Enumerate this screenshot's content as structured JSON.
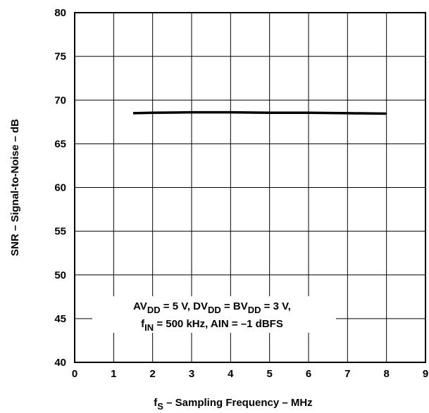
{
  "chart_data": {
    "type": "line",
    "xlabel": {
      "main": "f",
      "sub": "S",
      "rest": " – Sampling Frequency – MHz"
    },
    "ylabel": "SNR – Signal-to-Noise – dB",
    "xlim": [
      0,
      9
    ],
    "ylim": [
      40,
      80
    ],
    "x_ticks": [
      0,
      1,
      2,
      3,
      4,
      5,
      6,
      7,
      8,
      9
    ],
    "y_ticks": [
      40,
      45,
      50,
      55,
      60,
      65,
      70,
      75,
      80
    ],
    "grid": true,
    "series": [
      {
        "x": [
          1.5,
          2,
          3,
          4,
          5,
          6,
          7,
          8
        ],
        "y": [
          68.5,
          68.55,
          68.6,
          68.6,
          68.55,
          68.55,
          68.5,
          68.45
        ]
      }
    ],
    "annotation": {
      "line1": [
        {
          "t": "AV"
        },
        {
          "t": "DD",
          "sub": true
        },
        {
          "t": " = 5 V, DV"
        },
        {
          "t": "DD",
          "sub": true
        },
        {
          "t": " = BV"
        },
        {
          "t": "DD",
          "sub": true
        },
        {
          "t": " = 3 V,"
        }
      ],
      "line2": [
        {
          "t": "f"
        },
        {
          "t": "IN",
          "sub": true
        },
        {
          "t": " = 500 kHz, AIN = –1 dBFS"
        }
      ]
    }
  }
}
